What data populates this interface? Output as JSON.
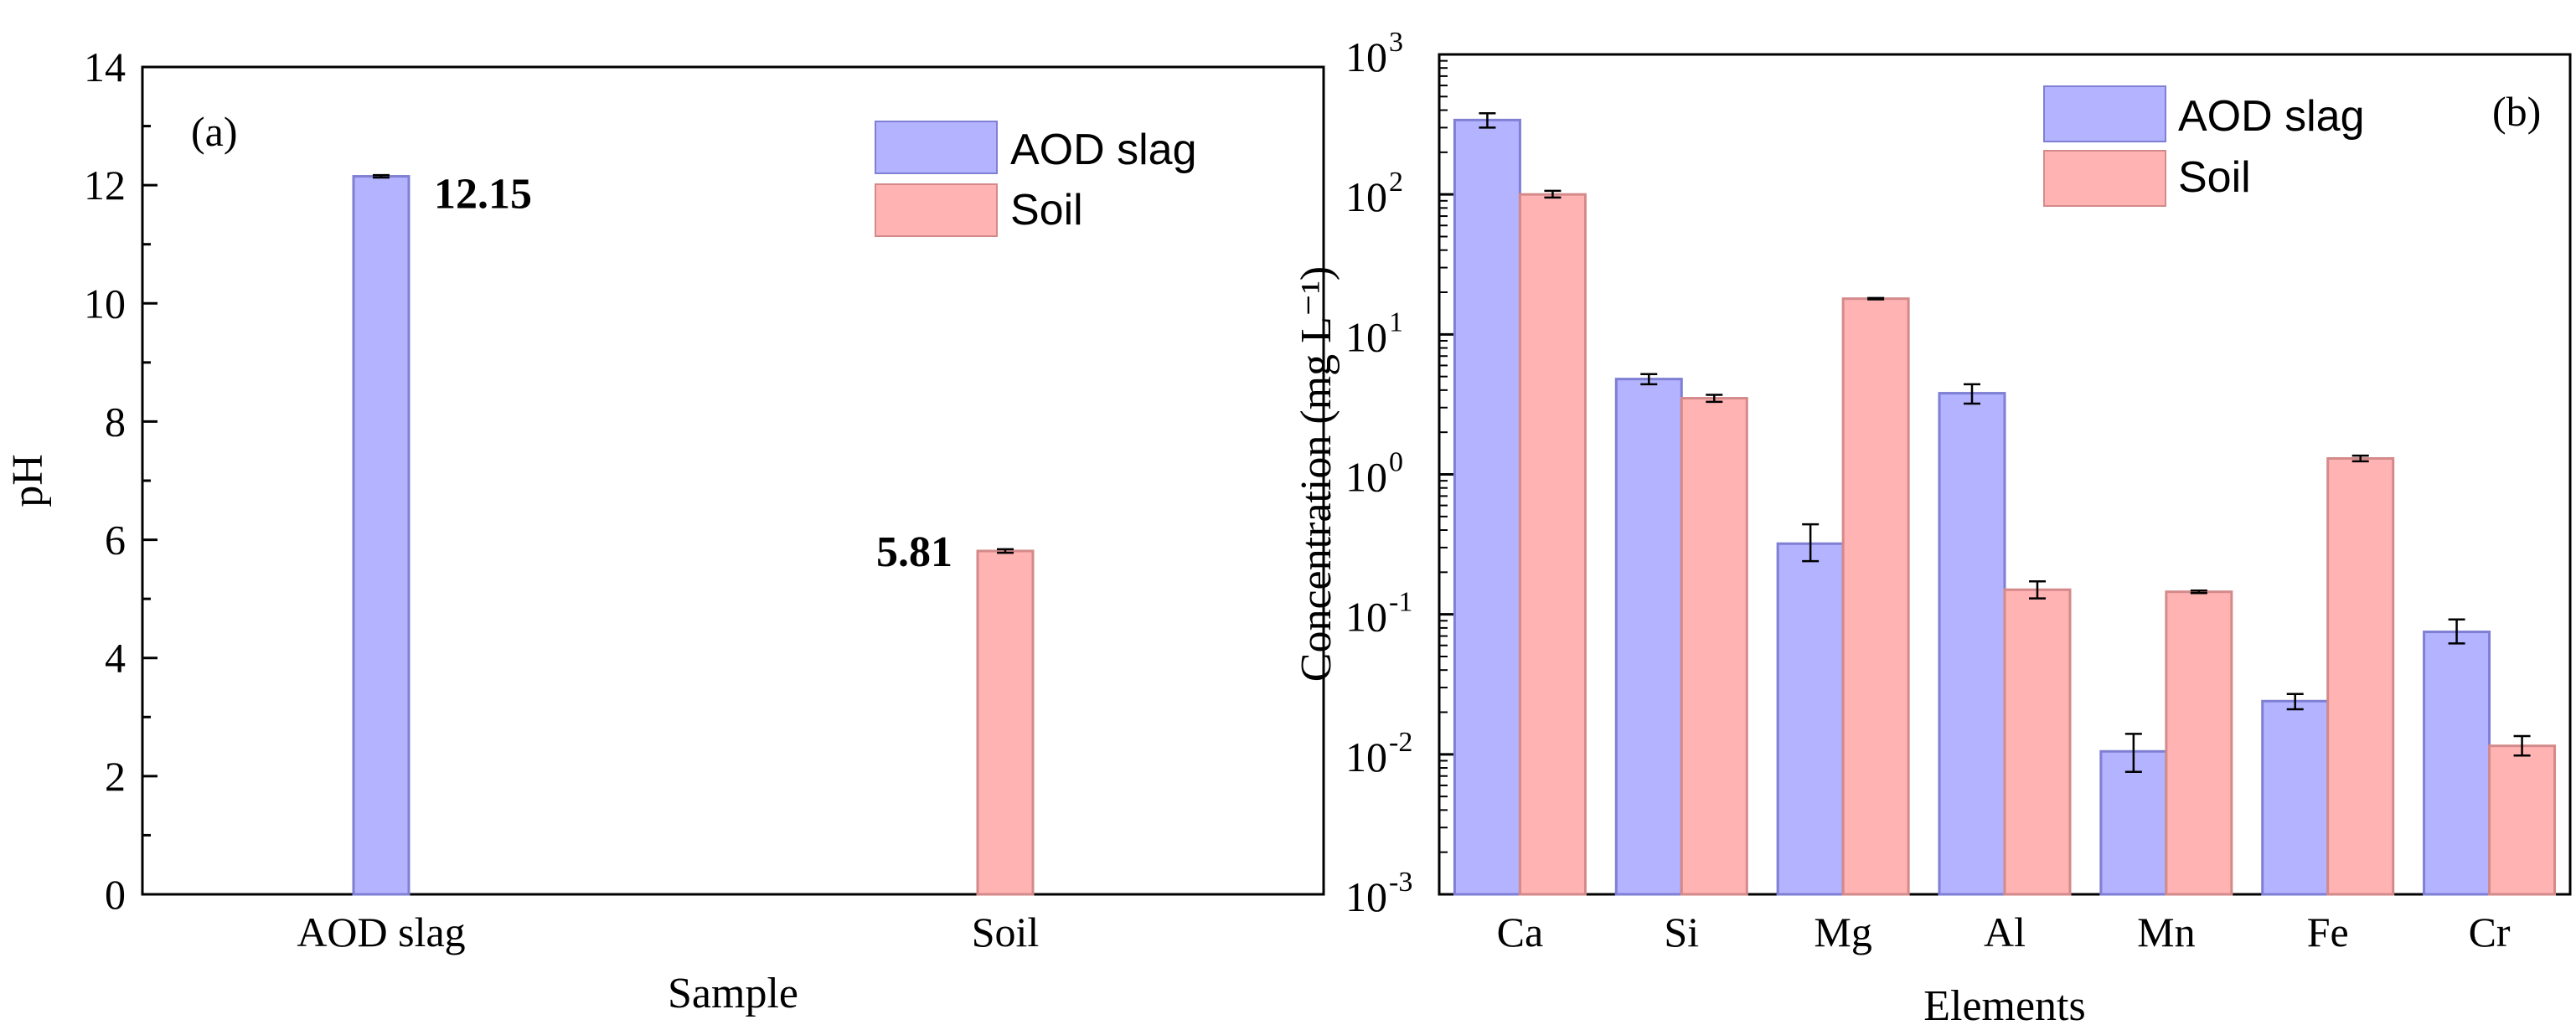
{
  "colors": {
    "aod_fill": "#b3b3ff",
    "aod_stroke": "#7f7fd4",
    "soil_fill": "#ffb3b3",
    "soil_stroke": "#d48a8a"
  },
  "chart_data": [
    {
      "panel": "(a)",
      "type": "bar",
      "xlabel": "Sample",
      "ylabel": "pH",
      "ylim": [
        0,
        14
      ],
      "y_ticks": [
        "0",
        "2",
        "4",
        "6",
        "8",
        "10",
        "12",
        "14"
      ],
      "categories": [
        "AOD slag",
        "Soil"
      ],
      "series": [
        {
          "name": "AOD slag",
          "category": "AOD slag",
          "value": 12.15,
          "error": 0.02,
          "label": "12.15"
        },
        {
          "name": "Soil",
          "category": "Soil",
          "value": 5.81,
          "error": 0.03,
          "label": "5.81"
        }
      ],
      "legend": [
        "AOD slag",
        "Soil"
      ],
      "legend_position": "top-right"
    },
    {
      "panel": "(b)",
      "type": "bar",
      "xlabel": "Elements",
      "ylabel": "Concentration (mg L⁻¹)",
      "yscale": "log",
      "ylim": [
        0.001,
        1000
      ],
      "y_ticks": [
        {
          "base": "10",
          "exp": "-3"
        },
        {
          "base": "10",
          "exp": "-2"
        },
        {
          "base": "10",
          "exp": "-1"
        },
        {
          "base": "10",
          "exp": "0"
        },
        {
          "base": "10",
          "exp": "1"
        },
        {
          "base": "10",
          "exp": "2"
        },
        {
          "base": "10",
          "exp": "3"
        }
      ],
      "categories": [
        "Ca",
        "Si",
        "Mg",
        "Al",
        "Mn",
        "Fe",
        "Cr"
      ],
      "series": [
        {
          "name": "AOD slag",
          "values": [
            340,
            4.8,
            0.32,
            3.8,
            0.0105,
            0.024,
            0.075
          ],
          "err_low": [
            300,
            4.4,
            0.24,
            3.2,
            0.0075,
            0.021,
            0.062
          ],
          "err_high": [
            380,
            5.2,
            0.44,
            4.4,
            0.014,
            0.027,
            0.092
          ]
        },
        {
          "name": "Soil",
          "values": [
            100,
            3.5,
            18,
            0.15,
            0.145,
            1.3,
            0.0115
          ],
          "err_low": [
            95,
            3.3,
            17.8,
            0.13,
            0.142,
            1.24,
            0.0098
          ],
          "err_high": [
            106,
            3.7,
            18.2,
            0.172,
            0.148,
            1.36,
            0.0135
          ]
        }
      ],
      "legend": [
        "AOD slag",
        "Soil"
      ],
      "legend_position": "top-right"
    }
  ]
}
